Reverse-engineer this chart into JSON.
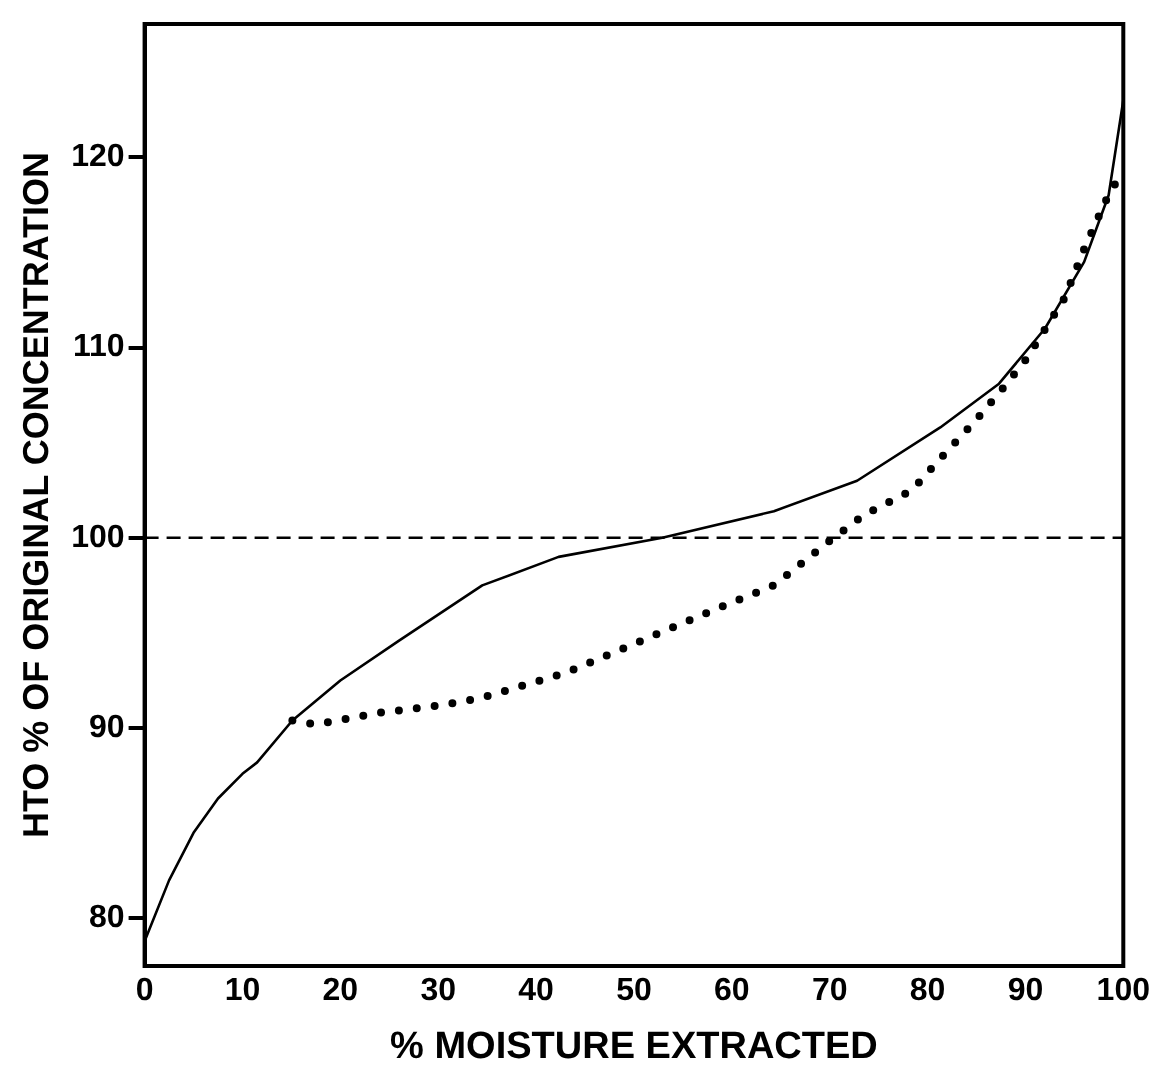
{
  "chart_data": {
    "type": "line",
    "xlabel": "% MOISTURE EXTRACTED",
    "ylabel": "HTO % OF ORIGINAL CONCENTRATION",
    "xlim": [
      0,
      100
    ],
    "ylim": [
      77.5,
      127
    ],
    "xticks": [
      0,
      10,
      20,
      30,
      40,
      50,
      60,
      70,
      80,
      90,
      100
    ],
    "yticks": [
      80,
      90,
      100,
      110,
      120
    ],
    "grid": false,
    "legend": false,
    "marker": "none",
    "ref_lines": [
      {
        "axis": "y",
        "value": 100,
        "line_style": "dashed",
        "color": "#000000"
      }
    ],
    "series": [
      {
        "color": "#000000",
        "line_style": "solid",
        "x": [
          0,
          2.5,
          5,
          7.5,
          10,
          11.5,
          15.1,
          20,
          26,
          34.5,
          42.3,
          52.9,
          64.3,
          72.8,
          81.3,
          87.3,
          92,
          96,
          98.5,
          100
        ],
        "values": [
          78.8,
          82,
          84.5,
          86.3,
          87.6,
          88.2,
          90.4,
          92.5,
          94.6,
          97.5,
          99,
          100,
          101.4,
          103,
          105.8,
          108.1,
          111,
          114.5,
          118,
          123
        ]
      },
      {
        "color": "#000000",
        "line_style": "dotted",
        "x": [
          15.1,
          17.5,
          23.9,
          30.3,
          34.5,
          43,
          50.8,
          58.6,
          64.3,
          69.9,
          73.5,
          78.4,
          81.9,
          84.8,
          87.6,
          90.1,
          94,
          96.1,
          98.2,
          99.6
        ],
        "values": [
          90.4,
          90.2,
          90.8,
          91.2,
          91.6,
          92.9,
          94.6,
          96.3,
          97.5,
          99.8,
          101.2,
          102.5,
          104.5,
          106.1,
          107.8,
          109.4,
          112.6,
          115.3,
          117.7,
          119
        ]
      }
    ]
  }
}
